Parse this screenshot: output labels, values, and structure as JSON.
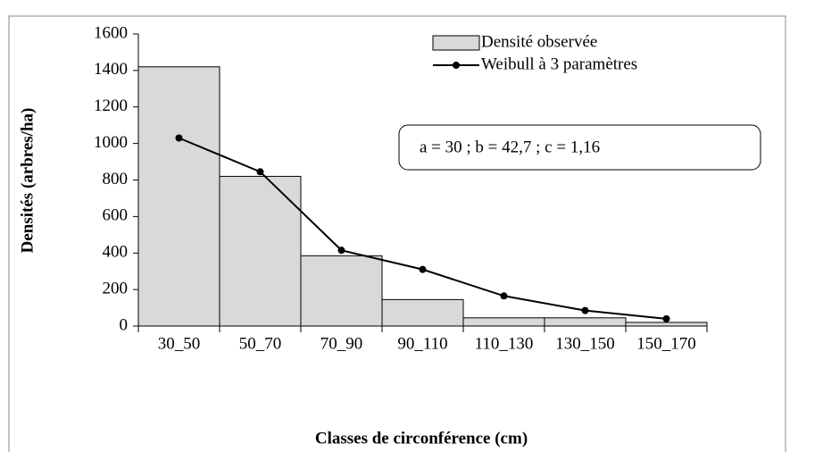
{
  "chart_data": {
    "type": "bar",
    "y_label": "Densités (arbres/ha)",
    "x_label": "Classes de circonférence (cm)",
    "annotation": "a = 30 ; b = 42,7 ; c = 1,16",
    "categories": [
      "30_50",
      "50_70",
      "70_90",
      "90_110",
      "110_130",
      "130_150",
      "150_170"
    ],
    "series": [
      {
        "name": "Densité observée",
        "type": "bar",
        "color": "#d9d9d9",
        "values": [
          1420,
          820,
          385,
          145,
          45,
          45,
          20
        ]
      },
      {
        "name": "Weibull à 3 paramètres",
        "type": "line",
        "color": "#000000",
        "values": [
          1030,
          845,
          415,
          310,
          165,
          85,
          40
        ]
      }
    ],
    "ylim": [
      0,
      1600
    ],
    "yticks": [
      0,
      200,
      400,
      600,
      800,
      1000,
      1200,
      1400,
      1600
    ],
    "grid": false
  }
}
